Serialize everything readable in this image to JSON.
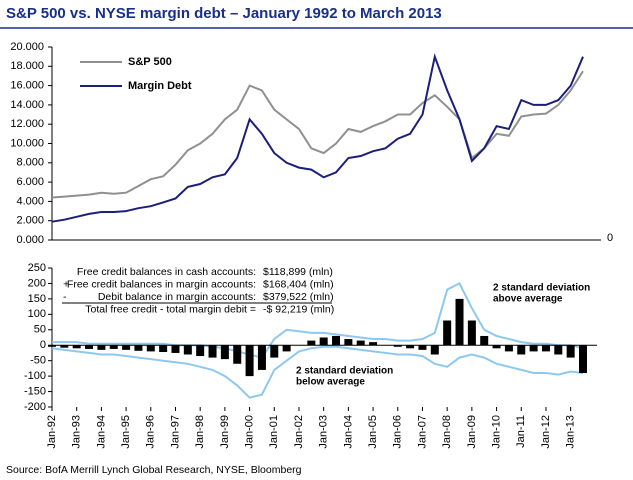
{
  "title": "S&P 500 vs. NYSE margin debt – January 1992 to March 2013",
  "source": "Source: BofA Merrill Lynch Global Research, NYSE, Bloomberg",
  "chart_data": [
    {
      "type": "line",
      "ylim": [
        0,
        20000
      ],
      "yticks": [
        {
          "value": 0,
          "label": "0.000"
        },
        {
          "value": 2000,
          "label": "2.000"
        },
        {
          "value": 4000,
          "label": "4.000"
        },
        {
          "value": 6000,
          "label": "6.000"
        },
        {
          "value": 8000,
          "label": "8.000"
        },
        {
          "value": 10000,
          "label": "10.000"
        },
        {
          "value": 12000,
          "label": "12.000"
        },
        {
          "value": 14000,
          "label": "14.000"
        },
        {
          "value": 16000,
          "label": "16.000"
        },
        {
          "value": 18000,
          "label": "18.000"
        },
        {
          "value": 20000,
          "label": "20.000"
        }
      ],
      "y2lim": [
        0,
        20000
      ],
      "y2ticks": [
        0
      ],
      "legend": "upper-left",
      "series": [
        {
          "name": "S&P 500",
          "color": "#909090",
          "values": [
            4400,
            4500,
            4600,
            4700,
            4900,
            4800,
            4900,
            5600,
            6300,
            6600,
            7800,
            9300,
            10000,
            11000,
            12500,
            13500,
            16000,
            15500,
            13500,
            12500,
            11500,
            9500,
            9000,
            10000,
            11500,
            11200,
            11800,
            12300,
            13000,
            13000,
            14200,
            15000,
            13800,
            12500,
            8500,
            9500,
            11000,
            10800,
            12800,
            13000,
            13100,
            14000,
            15500,
            17500
          ]
        },
        {
          "name": "Margin Debt",
          "color": "#1a1f7a",
          "values": [
            1900,
            2100,
            2400,
            2700,
            2900,
            2900,
            3000,
            3300,
            3500,
            3900,
            4300,
            5500,
            5800,
            6500,
            6800,
            8500,
            12500,
            11000,
            9000,
            8000,
            7500,
            7300,
            6500,
            7000,
            8500,
            8700,
            9200,
            9500,
            10500,
            11000,
            13000,
            19000,
            15500,
            12500,
            8200,
            9500,
            11800,
            11500,
            14500,
            14000,
            14000,
            14500,
            16000,
            19000
          ]
        }
      ]
    },
    {
      "type": "bar",
      "categories": [
        "Jan-92",
        null,
        "Jan-93",
        null,
        "Jan-94",
        null,
        "Jan-95",
        null,
        "Jan-96",
        null,
        "Jan-97",
        null,
        "Jan-98",
        null,
        "Jan-99",
        null,
        "Jan-00",
        null,
        "Jan-01",
        null,
        "Jan-02",
        null,
        "Jan-03",
        null,
        "Jan-04",
        null,
        "Jan-05",
        null,
        "Jan-06",
        null,
        "Jan-07",
        null,
        "Jan-08",
        null,
        "Jan-09",
        null,
        "Jan-10",
        null,
        "Jan-11",
        null,
        "Jan-12",
        null,
        "Jan-13",
        null
      ],
      "values": [
        -5,
        -8,
        -10,
        -12,
        -15,
        -12,
        -15,
        -18,
        -20,
        -22,
        -25,
        -30,
        -35,
        -40,
        -45,
        -60,
        -100,
        -80,
        -40,
        -20,
        0,
        15,
        25,
        30,
        20,
        15,
        10,
        0,
        -5,
        -10,
        -15,
        -30,
        80,
        150,
        80,
        30,
        -10,
        -20,
        -30,
        -20,
        -20,
        -30,
        -40,
        -90
      ],
      "color": "#000000",
      "band_color": "#8fc8ef",
      "upper_band": [
        10,
        10,
        10,
        5,
        5,
        5,
        5,
        5,
        5,
        5,
        0,
        0,
        0,
        -5,
        -10,
        -20,
        -30,
        -40,
        20,
        50,
        45,
        40,
        40,
        35,
        30,
        25,
        20,
        20,
        15,
        15,
        20,
        40,
        180,
        200,
        120,
        50,
        30,
        20,
        10,
        5,
        5,
        0,
        0,
        -10
      ],
      "lower_band": [
        -10,
        -15,
        -20,
        -25,
        -30,
        -30,
        -35,
        -40,
        -45,
        -50,
        -55,
        -60,
        -70,
        -80,
        -100,
        -130,
        -170,
        -160,
        -80,
        -50,
        -20,
        -10,
        -5,
        -5,
        -10,
        -15,
        -20,
        -25,
        -30,
        -30,
        -35,
        -60,
        -70,
        -40,
        -30,
        -40,
        -60,
        -70,
        -80,
        -90,
        -90,
        -95,
        -85,
        -90
      ],
      "ylim": [
        -200,
        250
      ],
      "yticks": [
        -200,
        -150,
        -100,
        -50,
        0,
        50,
        100,
        150,
        200,
        250
      ],
      "annotations": [
        {
          "sign": "",
          "label": "Free credit balances in cash accounts:",
          "value": "$118,899 (mln)"
        },
        {
          "sign": "+",
          "label": "Free credit balances in margin accounts:",
          "value": "$168,404 (mln)"
        },
        {
          "sign": "-",
          "label": "Debit balance in margin accounts:",
          "value": "$379,522 (mln)"
        },
        {
          "sign": "",
          "label": "Total free credit - total margin debit   =",
          "value": "-$ 92,219 (mln)"
        }
      ],
      "band_labels": [
        [
          "2 standard deviation",
          "above average"
        ],
        [
          "2 standard deviation",
          "below average"
        ]
      ]
    }
  ]
}
